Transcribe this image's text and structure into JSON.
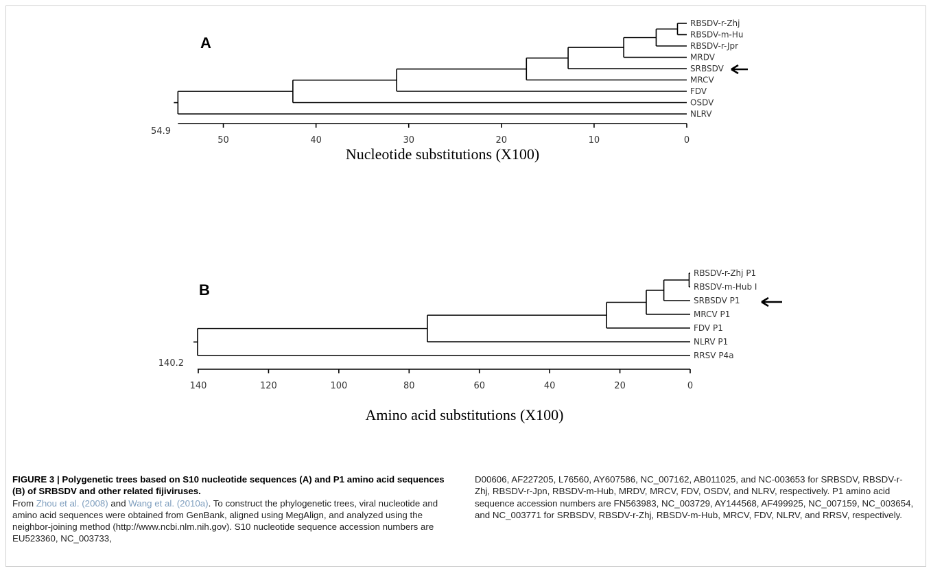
{
  "tree_a": {
    "panel_label": "A",
    "root_value": "54.9",
    "axis_title": "Nucleotide substitutions (X100)",
    "axis_max": 55,
    "ticks": [
      "50",
      "40",
      "30",
      "20",
      "10",
      "0"
    ],
    "tick_values": [
      50,
      40,
      30,
      20,
      10,
      0
    ],
    "leaves": [
      "RBSDV-r-Zhj",
      "RBSDV-m-Hu",
      "RBSDV-r-Jpr",
      "MRDV",
      "SRBSDV",
      "MRCV",
      "FDV",
      "OSDV",
      "NLRV"
    ],
    "arrow_target": "SRBSDV",
    "nodes": {
      "n1": {
        "h": 1,
        "children": [
          0,
          1
        ]
      },
      "n2": {
        "h": 3.3,
        "children": [
          "n1",
          2
        ]
      },
      "n3": {
        "h": 6.8,
        "children": [
          "n2",
          3
        ]
      },
      "n4": {
        "h": 12.8,
        "children": [
          "n3",
          4
        ]
      },
      "n5": {
        "h": 17.3,
        "children": [
          "n4",
          5
        ]
      },
      "n6": {
        "h": 31.3,
        "children": [
          "n5",
          6
        ]
      },
      "n7": {
        "h": 42.5,
        "children": [
          "n6",
          7
        ]
      },
      "n8": {
        "h": 54.9,
        "children": [
          "n7",
          8
        ]
      }
    }
  },
  "tree_b": {
    "panel_label": "B",
    "root_value": "140.2",
    "axis_title": "Amino acid substitutions (X100)",
    "axis_max": 140,
    "ticks": [
      "140",
      "120",
      "100",
      "80",
      "60",
      "40",
      "20",
      "0"
    ],
    "tick_values": [
      140,
      120,
      100,
      80,
      60,
      40,
      20,
      0
    ],
    "leaves": [
      "RBSDV-r-Zhj P1",
      "RBSDV-m-Hub I",
      "SRBSDV P1",
      "MRCV P1",
      "FDV P1",
      "NLRV P1",
      "RRSV P4a"
    ],
    "arrow_target": "SRBSDV P1",
    "nodes": {
      "m1": {
        "h": 0.3,
        "children": [
          0,
          1
        ]
      },
      "m2": {
        "h": 7.5,
        "children": [
          "m1",
          2
        ]
      },
      "m3": {
        "h": 12.5,
        "children": [
          "m2",
          3
        ]
      },
      "m4": {
        "h": 23.8,
        "children": [
          "m3",
          4
        ]
      },
      "m5": {
        "h": 74.8,
        "children": [
          "m4",
          5
        ]
      },
      "m6": {
        "h": 140.2,
        "children": [
          "m5",
          6
        ]
      }
    }
  },
  "caption": {
    "heading": "FIGURE 3 | Polygenetic trees based on S10 nucleotide sequences (A) and P1 amino acid sequences (B) of SRBSDV and other related fijiviruses.",
    "from_word": "From",
    "cite1": "Zhou et al. (2008)",
    "and_word": "and",
    "cite2": "Wang et al. (2010a)",
    "body_left": ". To construct the phylogenetic trees, viral nucleotide and amino acid sequences were obtained from GenBank, aligned using MegAlign, and analyzed using the neighbor-joining method (http://www.ncbi.nlm.nih.gov). S10 nucleotide sequence accession numbers are EU523360, NC_003733,",
    "body_right": "D00606, AF227205, L76560, AY607586, NC_007162, AB011025, and NC-003653 for SRBSDV, RBSDV-r-Zhj, RBSDV-r-Jpn, RBSDV-m-Hub, MRDV, MRCV, FDV, OSDV, and NLRV, respectively. P1 amino acid sequence accession numbers are FN563983, NC_003729, AY144568, AF499925, NC_007159, NC_003654, and NC_003771 for SRBSDV, RBSDV-r-Zhj, RBSDV-m-Hub, MRCV, FDV, NLRV, and RRSV, respectively."
  }
}
